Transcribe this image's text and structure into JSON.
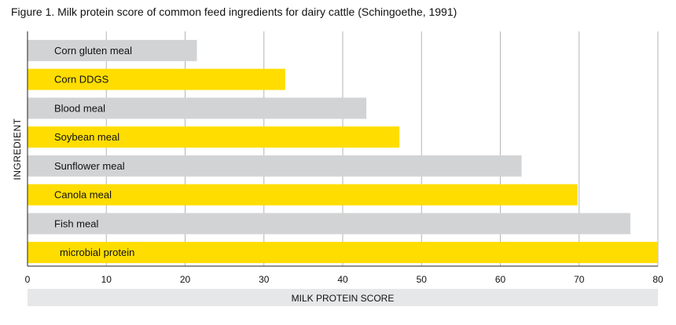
{
  "chart_data": {
    "type": "bar",
    "orientation": "horizontal",
    "title": "Figure 1. Milk protein score of common feed ingredients for dairy cattle (Schingoethe, 1991)",
    "xlabel": "MILK PROTEIN SCORE",
    "ylabel": "INGREDIENT",
    "xlim": [
      0,
      80
    ],
    "xticks": [
      "0",
      "10",
      "20",
      "30",
      "40",
      "50",
      "60",
      "70",
      "80"
    ],
    "grid": true,
    "categories": [
      "Corn gluten meal",
      "Corn DDGS",
      "Blood meal",
      "Soybean meal",
      "Sunflower meal",
      "Canola meal",
      "Fish meal",
      "microbial protein"
    ],
    "values": [
      21.5,
      32.7,
      43,
      47.2,
      62.7,
      69.8,
      76.5,
      80
    ],
    "colors": [
      "#d2d3d5",
      "#ffdd00",
      "#d2d3d5",
      "#ffdd00",
      "#d2d3d5",
      "#ffdd00",
      "#d2d3d5",
      "#ffdd00"
    ]
  }
}
